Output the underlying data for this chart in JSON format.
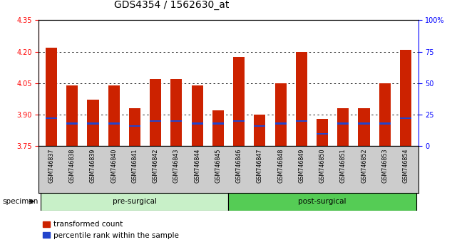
{
  "title": "GDS4354 / 1562630_at",
  "samples": [
    "GSM746837",
    "GSM746838",
    "GSM746839",
    "GSM746840",
    "GSM746841",
    "GSM746842",
    "GSM746843",
    "GSM746844",
    "GSM746845",
    "GSM746846",
    "GSM746847",
    "GSM746848",
    "GSM746849",
    "GSM746850",
    "GSM746851",
    "GSM746852",
    "GSM746853",
    "GSM746854"
  ],
  "transformed_count": [
    4.22,
    4.04,
    3.97,
    4.04,
    3.93,
    4.07,
    4.07,
    4.04,
    3.92,
    4.175,
    3.9,
    4.05,
    4.2,
    3.88,
    3.93,
    3.93,
    4.05,
    4.21
  ],
  "percentile_rank": [
    22,
    18,
    18,
    18,
    16,
    20,
    20,
    18,
    18,
    20,
    16,
    18,
    20,
    10,
    18,
    18,
    18,
    22
  ],
  "groups": [
    {
      "label": "pre-surgical",
      "start": 0,
      "end": 9,
      "color": "#c8f0c8"
    },
    {
      "label": "post-surgical",
      "start": 9,
      "end": 18,
      "color": "#55cc55"
    }
  ],
  "ylim_left": [
    3.75,
    4.35
  ],
  "ylim_right": [
    0,
    100
  ],
  "yticks_left": [
    3.75,
    3.9,
    4.05,
    4.2,
    4.35
  ],
  "yticks_right": [
    0,
    25,
    50,
    75,
    100
  ],
  "bar_color": "#cc2200",
  "percentile_color": "#2244cc",
  "bar_baseline": 3.75,
  "grid_values": [
    3.9,
    4.05,
    4.2
  ],
  "legend_items": [
    {
      "label": "transformed count",
      "color": "#cc2200"
    },
    {
      "label": "percentile rank within the sample",
      "color": "#2244cc"
    }
  ],
  "title_fontsize": 10,
  "tick_fontsize": 7,
  "bar_width": 0.55,
  "n_pre": 9,
  "n_post": 9
}
